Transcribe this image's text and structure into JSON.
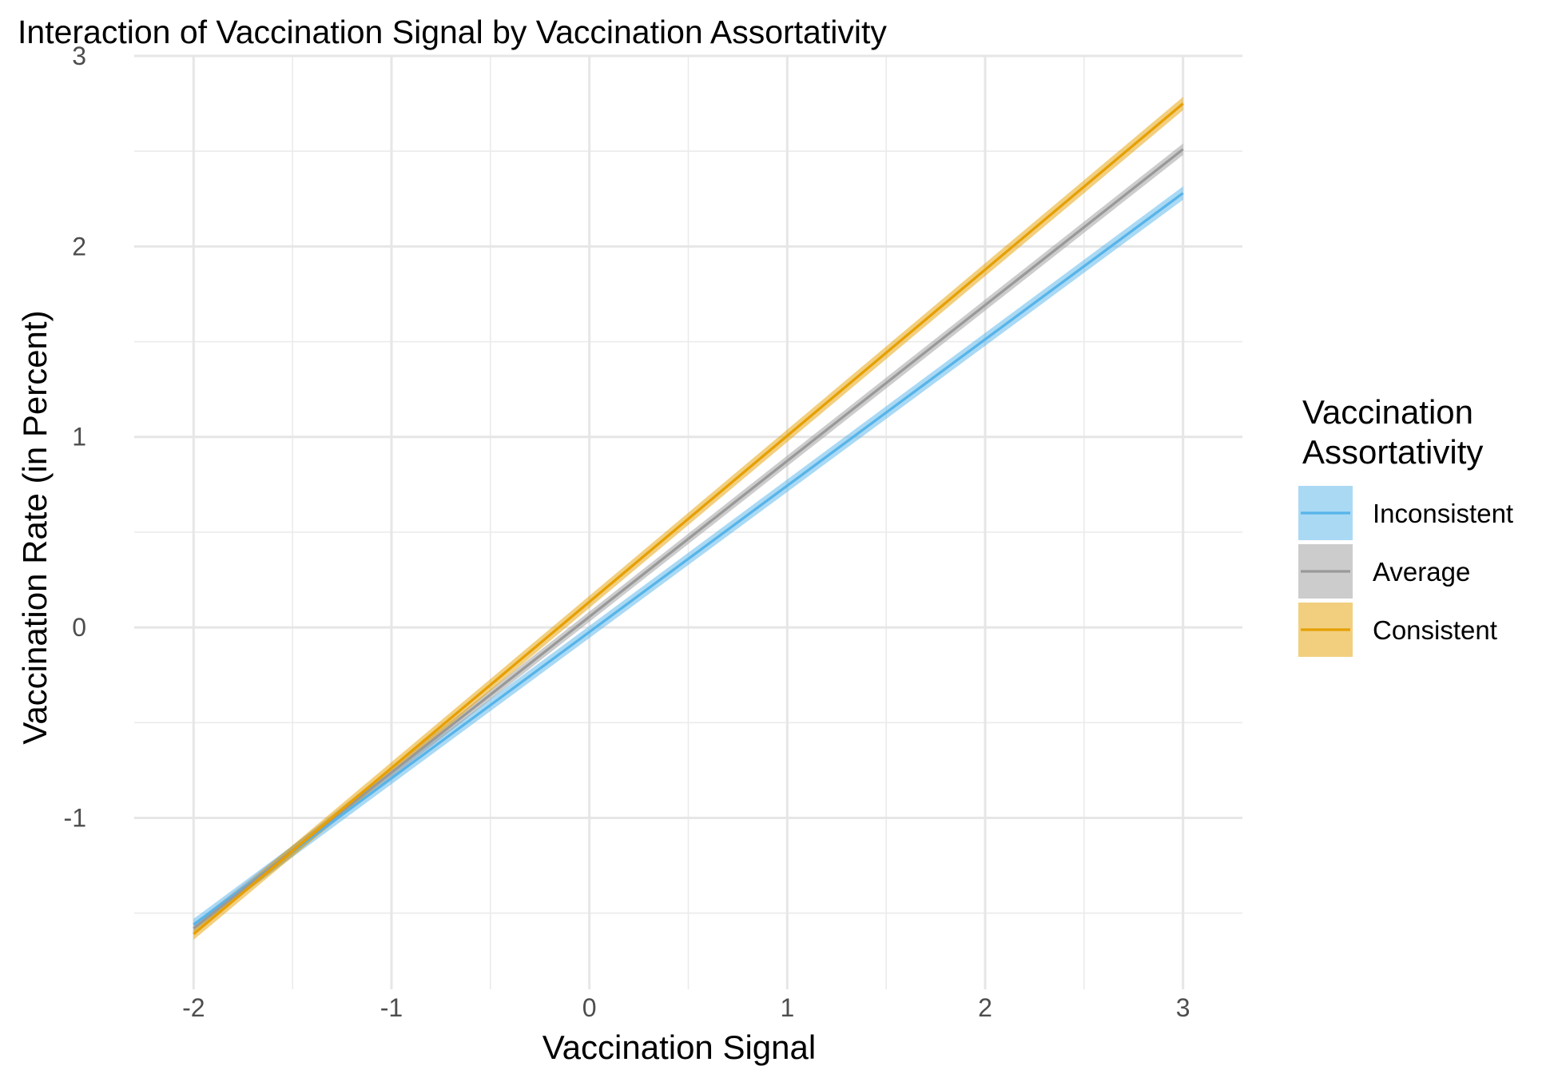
{
  "chart_data": {
    "type": "line",
    "title": "Interaction of Vaccination Signal by Vaccination Assortativity",
    "xlabel": "Vaccination Signal",
    "ylabel": "Vaccination Rate (in Percent)",
    "xlim": [
      -2.3,
      3.3
    ],
    "ylim": [
      -1.9,
      3.0
    ],
    "xticks": [
      -2,
      -1,
      0,
      1,
      2,
      3
    ],
    "xtick_labels": [
      "-2",
      "-1",
      "0",
      "1",
      "2",
      "3"
    ],
    "yticks": [
      -1,
      0,
      1,
      2,
      3
    ],
    "ytick_labels": [
      "-1",
      "0",
      "1",
      "2",
      "3"
    ],
    "grid": true,
    "legend_title_lines": [
      "Vaccination",
      "Assortativity"
    ],
    "legend_position": "right",
    "series": [
      {
        "name": "Inconsistent",
        "color": "#56B4E9",
        "band_color": "#56B4E9",
        "x": [
          -2,
          3
        ],
        "y": [
          -1.56,
          2.28
        ],
        "ci_halfwidth": [
          0.03,
          0.035
        ]
      },
      {
        "name": "Average",
        "color": "#999999",
        "band_color": "#999999",
        "x": [
          -2,
          3
        ],
        "y": [
          -1.58,
          2.51
        ],
        "ci_halfwidth": [
          0.025,
          0.03
        ]
      },
      {
        "name": "Consistent",
        "color": "#E69F00",
        "band_color": "#E69F00",
        "x": [
          -2,
          3
        ],
        "y": [
          -1.61,
          2.75
        ],
        "ci_halfwidth": [
          0.03,
          0.035
        ]
      }
    ]
  }
}
